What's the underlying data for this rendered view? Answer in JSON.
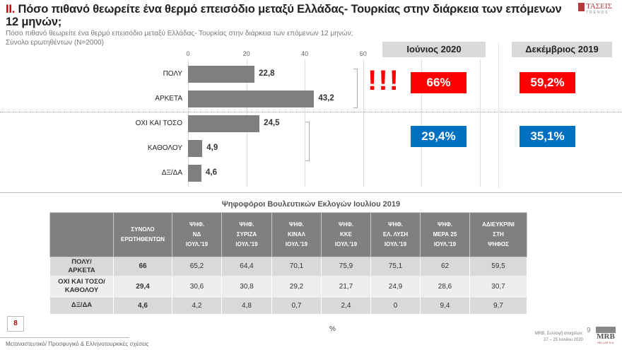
{
  "header": {
    "section_num": "II.",
    "title": "Πόσο πιθανό θεωρείτε ένα θερμό επεισόδιο μεταξύ Ελλάδας- Τουρκίας στην διάρκεια των επόμενων 12 μηνών;",
    "subtitle": "Πόσο πιθανό θεωρείτε ένα θερμό επεισόδιο μεταξύ Ελλάδας- Τουρκίας στην διάρκεια των επόμενων 12 μηνών;",
    "base": "Σύνολο ερωτηθέντων (Ν=2000)",
    "logo": "ΤΑΣΕΙΣ TRENDS"
  },
  "chart_data": {
    "type": "bar",
    "orientation": "horizontal",
    "categories": [
      "ΠΟΛΥ",
      "ΑΡΚΕΤΑ",
      "ΟΧΙ ΚΑΙ ΤΟΣΟ",
      "ΚΑΘΟΛΟΥ",
      "ΔΞ/ΔΑ"
    ],
    "values": [
      22.8,
      43.2,
      24.5,
      4.9,
      4.6
    ],
    "value_labels": [
      "22,8",
      "43,2",
      "24,5",
      "4,9",
      "4,6"
    ],
    "xlim": [
      0,
      100
    ],
    "ticks": [
      "0",
      "20",
      "40",
      "60"
    ],
    "grid": true,
    "bar_color": "#7f7f7f"
  },
  "summary": {
    "periods": [
      "Ιούνιος 2020",
      "Δεκέμβριος 2019"
    ],
    "likely": [
      "66%",
      "59,2%"
    ],
    "unlikely": [
      "29,4%",
      "35,1%"
    ],
    "exclaim": "!!!",
    "colors": {
      "likely": "#ff0000",
      "unlikely": "#0070c0"
    }
  },
  "table": {
    "title": "Ψηφοφόροι Βουλευτικών Εκλογών Ιουλίου 2019",
    "headers": [
      [
        "ΣΥΝΟΛΟ",
        "ΕΡΩΤΗΘΕΝΤΩΝ"
      ],
      [
        "ΨΗΦ.",
        "ΝΔ",
        "ΙΟΥΛ.'19"
      ],
      [
        "ΨΗΦ.",
        "ΣΥΡΙΖΑ",
        "ΙΟΥΛ.'19"
      ],
      [
        "ΨΗΦ.",
        "ΚΙΝΑΛ",
        "ΙΟΥΛ.'19"
      ],
      [
        "ΨΗΦ.",
        "ΚΚΕ",
        "ΙΟΥΛ.'19"
      ],
      [
        "ΨΗΦ.",
        "ΕΛ. ΛΥΣΗ",
        "ΙΟΥΛ.'19"
      ],
      [
        "ΨΗΦ.",
        "ΜΕΡΑ 25",
        "ΙΟΥΛ.'19"
      ],
      [
        "ΑΔΙΕΥΚΡΙΝΙ",
        "ΣΤΗ",
        "ΨΗΦΟΣ"
      ]
    ],
    "rows": [
      {
        "label": [
          "ΠΟΛΥ/",
          "ΑΡΚΕΤΑ"
        ],
        "cells": [
          "66",
          "65,2",
          "64,4",
          "70,1",
          "75,9",
          "75,1",
          "62",
          "59,5"
        ]
      },
      {
        "label": [
          "ΟΧΙ ΚΑΙ ΤΟΣΟ/",
          "ΚΑΘΟΛΟΥ"
        ],
        "cells": [
          "29,4",
          "30,6",
          "30,8",
          "29,2",
          "21,7",
          "24,9",
          "28,6",
          "30,7"
        ]
      },
      {
        "label": [
          "ΔΞ/ΔΑ"
        ],
        "cells": [
          "4,6",
          "4,2",
          "4,8",
          "0,7",
          "2,4",
          "0",
          "9,4",
          "9,7"
        ]
      }
    ]
  },
  "footer": {
    "page_box": "8",
    "percent": "%",
    "topic": "Μεταναστευτικό/ Προσφυγικό & Ελληνοτουρκικές σχέσεις",
    "source1": "MRB, Συλλογή στοιχείων:",
    "source2": "17 – 25 Ιουνίου 2020",
    "page_num": "9",
    "logo": "MRB HELLAS S.A."
  }
}
